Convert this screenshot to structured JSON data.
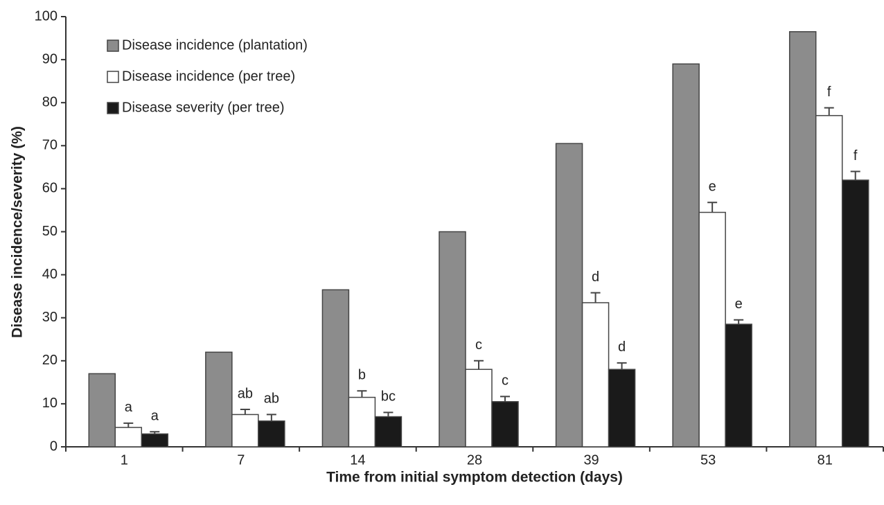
{
  "chart_data": {
    "type": "bar",
    "y_label": "Disease incidence/severity (%)",
    "x_label": "Time from initial symptom detection (days)",
    "categories": [
      "1",
      "7",
      "14",
      "28",
      "39",
      "53",
      "81"
    ],
    "ylim": [
      0,
      100
    ],
    "yticks": [
      0,
      10,
      20,
      30,
      40,
      50,
      60,
      70,
      80,
      90,
      100
    ],
    "legend": "top-left",
    "series": [
      {
        "name": "Disease incidence (plantation)",
        "color": "#8c8c8c",
        "values": [
          17,
          22,
          36.5,
          50,
          70.5,
          89,
          96.5
        ]
      },
      {
        "name": "Disease incidence (per tree)",
        "color": "#ffffff",
        "values": [
          4.5,
          7.5,
          11.5,
          18,
          33.5,
          54.5,
          77
        ],
        "errors": [
          1,
          1.2,
          1.5,
          2,
          2.3,
          2.3,
          1.8
        ],
        "letters": [
          "a",
          "ab",
          "b",
          "c",
          "d",
          "e",
          "f"
        ]
      },
      {
        "name": "Disease severity (per tree)",
        "color": "#1a1a1a",
        "values": [
          3,
          6,
          7,
          10.5,
          18,
          28.5,
          62
        ],
        "errors": [
          0.5,
          1.5,
          1,
          1.2,
          1.5,
          1,
          2
        ],
        "letters": [
          "a",
          "ab",
          "bc",
          "c",
          "d",
          "e",
          "f"
        ]
      }
    ]
  }
}
